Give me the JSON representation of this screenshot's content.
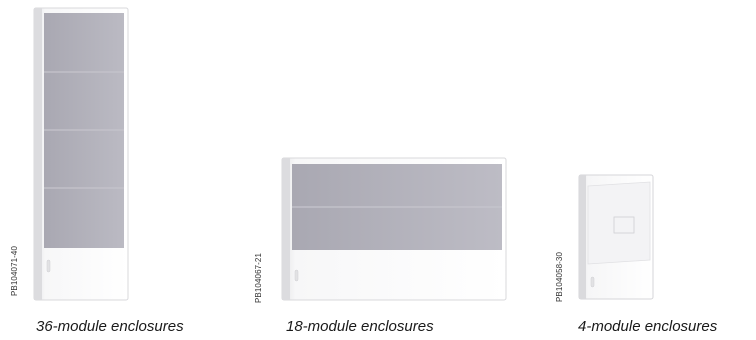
{
  "products": [
    {
      "ref": "PB104071-40",
      "caption": "36-module enclosures"
    },
    {
      "ref": "PB104067-21",
      "caption": "18-module enclosures"
    },
    {
      "ref": "PB104058-30",
      "caption": "4-module enclosures"
    }
  ]
}
